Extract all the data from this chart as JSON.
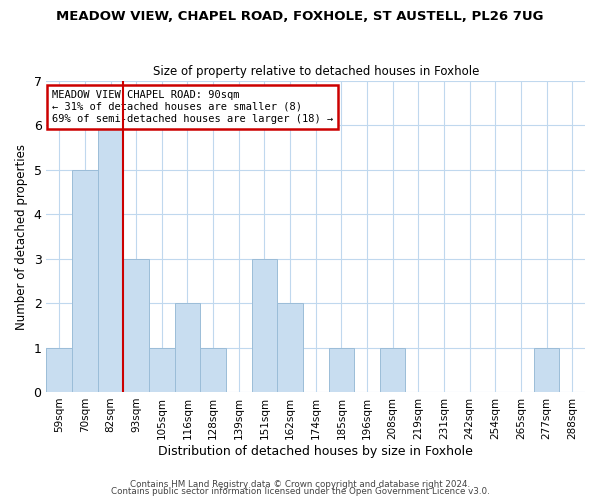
{
  "title": "MEADOW VIEW, CHAPEL ROAD, FOXHOLE, ST AUSTELL, PL26 7UG",
  "subtitle": "Size of property relative to detached houses in Foxhole",
  "xlabel": "Distribution of detached houses by size in Foxhole",
  "ylabel": "Number of detached properties",
  "bin_labels": [
    "59sqm",
    "70sqm",
    "82sqm",
    "93sqm",
    "105sqm",
    "116sqm",
    "128sqm",
    "139sqm",
    "151sqm",
    "162sqm",
    "174sqm",
    "185sqm",
    "196sqm",
    "208sqm",
    "219sqm",
    "231sqm",
    "242sqm",
    "254sqm",
    "265sqm",
    "277sqm",
    "288sqm"
  ],
  "bar_heights": [
    1,
    5,
    6,
    3,
    1,
    2,
    1,
    0,
    3,
    2,
    0,
    1,
    0,
    1,
    0,
    0,
    0,
    0,
    0,
    1,
    0
  ],
  "bar_color": "#c8ddf0",
  "bar_edge_color": "#9bbdd8",
  "property_line_x": 2.5,
  "property_line_color": "#cc0000",
  "ylim": [
    0,
    7
  ],
  "yticks": [
    0,
    1,
    2,
    3,
    4,
    5,
    6,
    7
  ],
  "annotation_text": "MEADOW VIEW CHAPEL ROAD: 90sqm\n← 31% of detached houses are smaller (8)\n69% of semi-detached houses are larger (18) →",
  "annotation_box_edgecolor": "#cc0000",
  "footer_line1": "Contains HM Land Registry data © Crown copyright and database right 2024.",
  "footer_line2": "Contains public sector information licensed under the Open Government Licence v3.0.",
  "background_color": "#ffffff",
  "grid_color": "#c0d8ee",
  "title_fontsize": 9.5,
  "subtitle_fontsize": 8.5,
  "xlabel_fontsize": 9,
  "ylabel_fontsize": 8.5,
  "tick_fontsize": 7.5,
  "annot_fontsize": 7.5
}
